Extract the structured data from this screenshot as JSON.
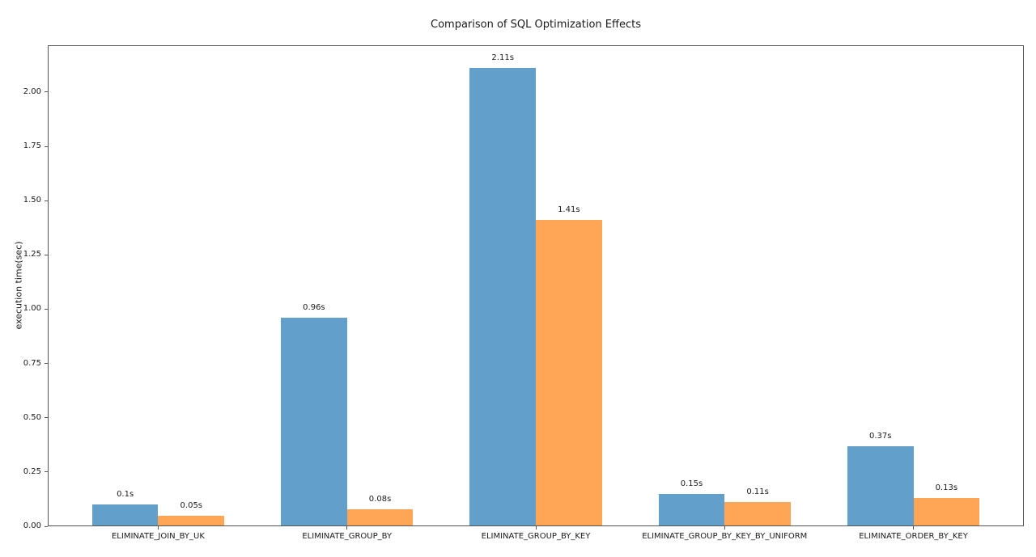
{
  "chart_data": {
    "type": "bar",
    "title": "Comparison of SQL Optimization Effects",
    "xlabel": "",
    "ylabel": "execution time(sec)",
    "categories": [
      "ELIMINATE_JOIN_BY_UK",
      "ELIMINATE_GROUP_BY",
      "ELIMINATE_GROUP_BY_KEY",
      "ELIMINATE_GROUP_BY_KEY_BY_UNIFORM",
      "ELIMINATE_ORDER_BY_KEY"
    ],
    "series": [
      {
        "color": "#62A0CB",
        "values": [
          0.1,
          0.96,
          2.11,
          0.15,
          0.37
        ],
        "labels": [
          "0.1s",
          "0.96s",
          "2.11s",
          "0.15s",
          "0.37s"
        ]
      },
      {
        "color": "#FFA556",
        "values": [
          0.05,
          0.08,
          1.41,
          0.11,
          0.13
        ],
        "labels": [
          "0.05s",
          "0.08s",
          "1.41s",
          "0.11s",
          "0.13s"
        ]
      }
    ],
    "ytick_labels": [
      "0.00",
      "0.25",
      "0.50",
      "0.75",
      "1.00",
      "1.25",
      "1.50",
      "1.75",
      "2.00"
    ],
    "ylim": [
      0,
      2.2155
    ],
    "grid": false,
    "legend": "none"
  }
}
